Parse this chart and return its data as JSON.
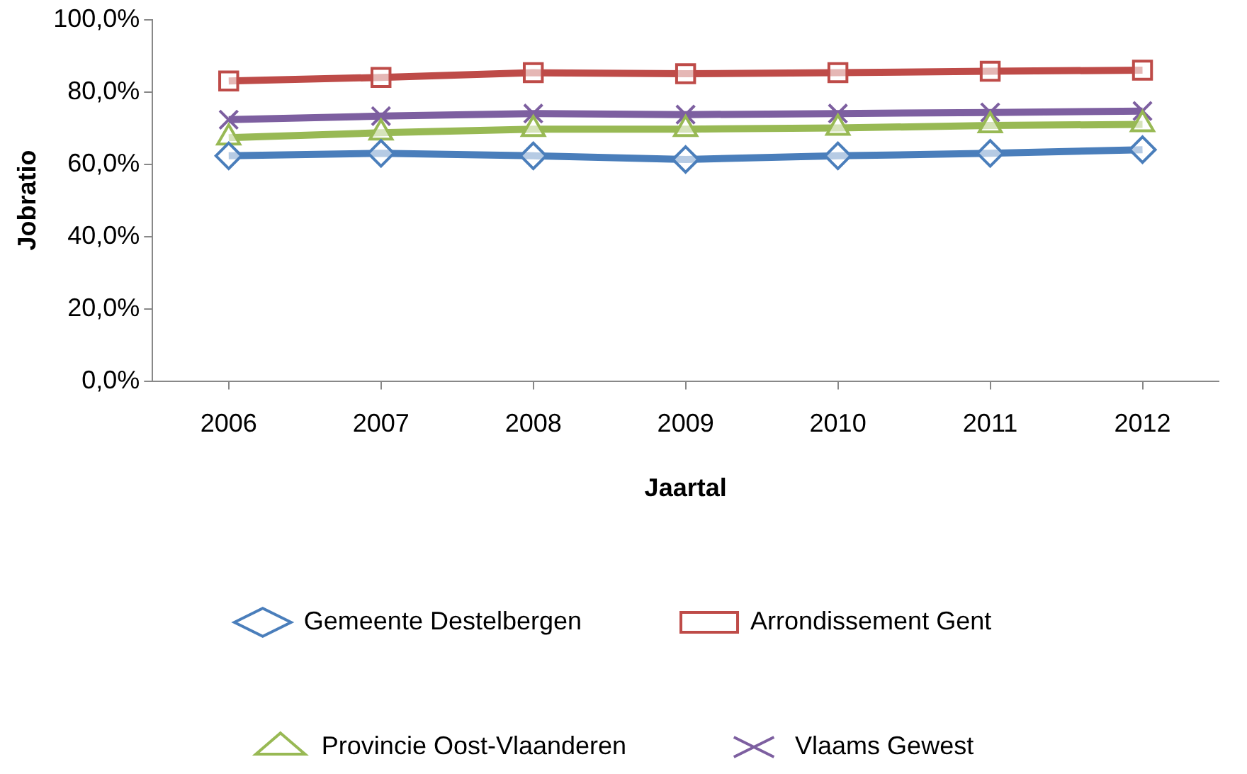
{
  "chart_data": {
    "type": "line",
    "xlabel": "Jaartal",
    "ylabel": "Jobratio",
    "categories": [
      "2006",
      "2007",
      "2008",
      "2009",
      "2010",
      "2011",
      "2012"
    ],
    "series": [
      {
        "name": "Gemeente Destelbergen",
        "color": "#4a7ebb",
        "marker": "diamond",
        "values": [
          62.3,
          63,
          62.3,
          61.3,
          62.3,
          63,
          64
        ]
      },
      {
        "name": "Arrondissement Gent",
        "color": "#be4b48",
        "marker": "square",
        "values": [
          83,
          84,
          85.3,
          85,
          85.3,
          85.7,
          86
        ]
      },
      {
        "name": "Provincie Oost-Vlaanderen",
        "color": "#98b954",
        "marker": "triangle",
        "values": [
          67.3,
          68.7,
          69.7,
          69.7,
          70,
          70.7,
          71
        ]
      },
      {
        "name": "Vlaams Gewest",
        "color": "#7d5fa0",
        "marker": "cross",
        "values": [
          72.3,
          73.3,
          74,
          73.7,
          74,
          74.3,
          74.7
        ]
      }
    ],
    "ylim": [
      0,
      100
    ],
    "yticks": [
      {
        "value": 0,
        "label": "0,0%"
      },
      {
        "value": 20,
        "label": "20,0%"
      },
      {
        "value": 40,
        "label": "40,0%"
      },
      {
        "value": 60,
        "label": "60,0%"
      },
      {
        "value": 80,
        "label": "80,0%"
      },
      {
        "value": 100,
        "label": "100,0%"
      }
    ],
    "grid": false,
    "legend": "bottom",
    "line_style": "solid"
  }
}
